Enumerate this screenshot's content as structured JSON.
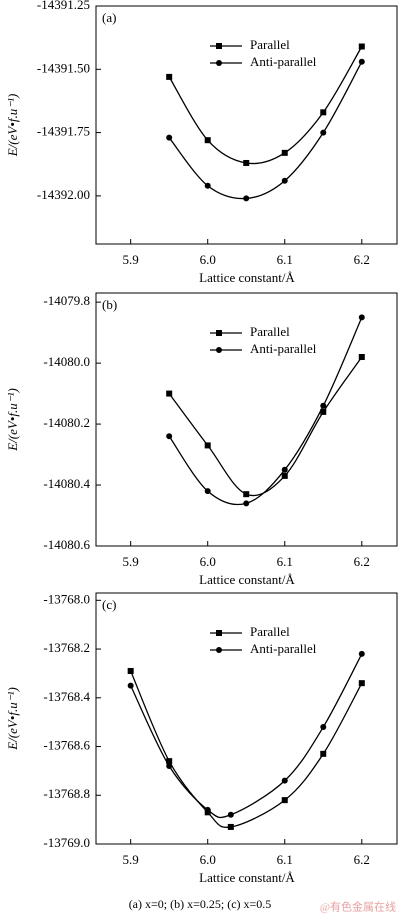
{
  "chart_data": [
    {
      "type": "line",
      "panel_label": "(a)",
      "y_label": "E/(eV•f.u⁻¹)",
      "x_label": "Lattice constant/Å",
      "x": [
        5.95,
        6.0,
        6.05,
        6.1,
        6.15,
        6.2
      ],
      "series": [
        {
          "name": "Parallel",
          "color": "#000000",
          "marker": "square",
          "values": [
            -14391.53,
            -14391.78,
            -14391.87,
            -14391.83,
            -14391.67,
            -14391.41
          ]
        },
        {
          "name": "Anti-parallel",
          "color": "#000000",
          "marker": "circle",
          "values": [
            -14391.77,
            -14391.96,
            -14392.01,
            -14391.94,
            -14391.75,
            -14391.47
          ]
        }
      ],
      "xlim": [
        5.855,
        6.247
      ],
      "ylim": [
        -14392.19,
        -14391.25
      ],
      "xticks": [
        {
          "value": 5.9,
          "label": "5.9"
        },
        {
          "value": 6.0,
          "label": "6.0"
        },
        {
          "value": 6.1,
          "label": "6.1"
        },
        {
          "value": 6.2,
          "label": "6.2"
        }
      ],
      "yticks": [
        {
          "value": -14391.25,
          "label": "-14391.25"
        },
        {
          "value": -14391.5,
          "label": "-14391.50"
        },
        {
          "value": -14391.75,
          "label": "-14391.75"
        },
        {
          "value": -14392.0,
          "label": "-14392.00"
        }
      ],
      "legend": "upper right"
    },
    {
      "type": "line",
      "panel_label": "(b)",
      "y_label": "E/(eV•f.u⁻¹)",
      "x_label": "Lattice constant/Å",
      "x": [
        5.95,
        6.0,
        6.05,
        6.1,
        6.15,
        6.2
      ],
      "series": [
        {
          "name": "Parallel",
          "color": "#000000",
          "marker": "square",
          "values": [
            -14080.1,
            -14080.27,
            -14080.43,
            -14080.37,
            -14080.16,
            -14079.98
          ]
        },
        {
          "name": "Anti-parallel",
          "color": "#000000",
          "marker": "circle",
          "values": [
            -14080.24,
            -14080.42,
            -14080.46,
            -14080.35,
            -14080.14,
            -14079.85
          ]
        }
      ],
      "xlim": [
        5.855,
        6.247
      ],
      "ylim": [
        -14080.6,
        -14079.77
      ],
      "xticks": [
        {
          "value": 5.9,
          "label": "5.9"
        },
        {
          "value": 6.0,
          "label": "6.0"
        },
        {
          "value": 6.1,
          "label": "6.1"
        },
        {
          "value": 6.2,
          "label": "6.2"
        }
      ],
      "yticks": [
        {
          "value": -14079.8,
          "label": "-14079.8"
        },
        {
          "value": -14080.0,
          "label": "-14080.0"
        },
        {
          "value": -14080.2,
          "label": "-14080.2"
        },
        {
          "value": -14080.4,
          "label": "-14080.4"
        },
        {
          "value": -14080.6,
          "label": "-14080.6"
        }
      ],
      "legend": "upper right"
    },
    {
      "type": "line",
      "panel_label": "(c)",
      "y_label": "E/(eV•f.u⁻¹)",
      "x_label": "Lattice constant/Å",
      "x": [
        5.9,
        5.95,
        6.0,
        6.03,
        6.1,
        6.15,
        6.2
      ],
      "series": [
        {
          "name": "Parallel",
          "color": "#000000",
          "marker": "square",
          "values": [
            -13768.29,
            -13768.66,
            -13768.87,
            -13768.93,
            -13768.82,
            -13768.63,
            -13768.34
          ]
        },
        {
          "name": "Anti-parallel",
          "color": "#000000",
          "marker": "circle",
          "values": [
            -13768.35,
            -13768.68,
            -13768.86,
            -13768.88,
            -13768.74,
            -13768.52,
            -13768.22
          ]
        }
      ],
      "xlim": [
        5.855,
        6.247
      ],
      "ylim": [
        -13769.0,
        -13767.97
      ],
      "xticks": [
        {
          "value": 5.9,
          "label": "5.9"
        },
        {
          "value": 6.0,
          "label": "6.0"
        },
        {
          "value": 6.1,
          "label": "6.1"
        },
        {
          "value": 6.2,
          "label": "6.2"
        }
      ],
      "yticks": [
        {
          "value": -13768.0,
          "label": "-13768.0"
        },
        {
          "value": -13768.2,
          "label": "-13768.2"
        },
        {
          "value": -13768.4,
          "label": "-13768.4"
        },
        {
          "value": -13768.6,
          "label": "-13768.6"
        },
        {
          "value": -13768.8,
          "label": "-13768.8"
        },
        {
          "value": -13769.0,
          "label": "-13769.0"
        }
      ],
      "legend": "upper right"
    }
  ],
  "caption": "(a) x=0; (b) x=0.25; (c) x=0.5",
  "watermark": "@有色金属在线"
}
